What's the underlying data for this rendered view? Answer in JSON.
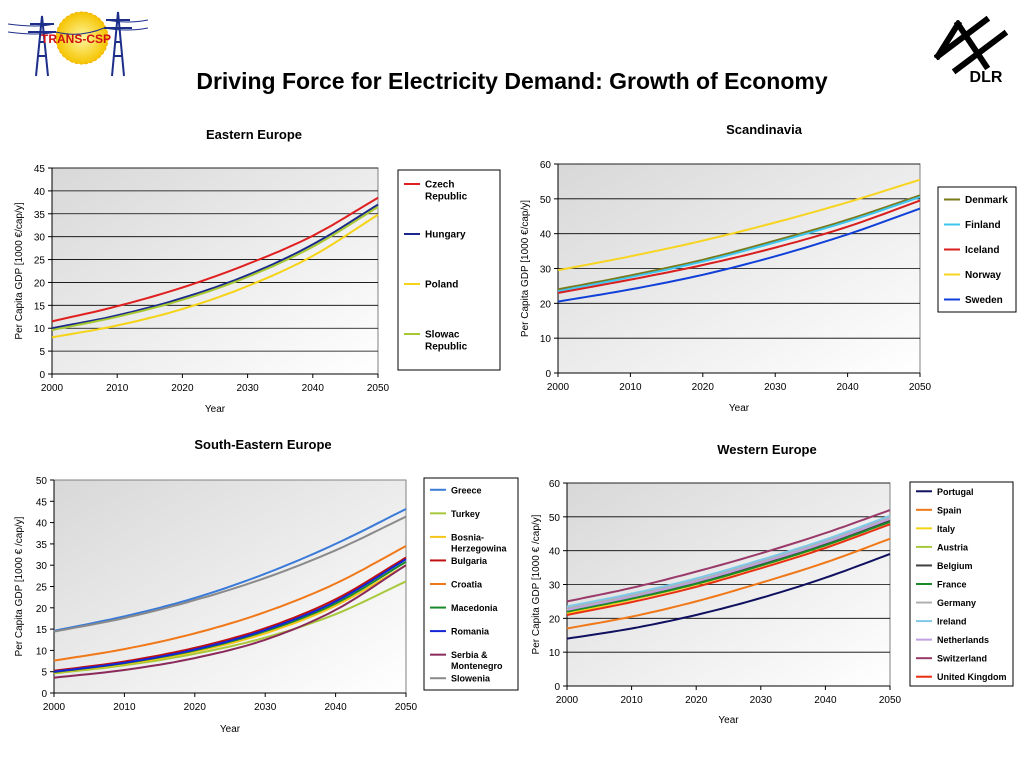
{
  "page": {
    "title": "Driving Force for Electricity Demand: Growth of Economy",
    "logo_left_text": "TRANS-CSP",
    "logo_right_text": "DLR"
  },
  "chart_data": [
    {
      "id": "eastern",
      "type": "line",
      "title": "Eastern Europe",
      "xlabel": "Year",
      "ylabel": "Per Capita GDP [1000 €/cap/y]",
      "xlim": [
        2000,
        2050
      ],
      "ylim": [
        0,
        45
      ],
      "xticks": [
        2000,
        2010,
        2020,
        2030,
        2040,
        2050
      ],
      "yticks": [
        0,
        5,
        10,
        15,
        20,
        25,
        30,
        35,
        40,
        45
      ],
      "grid": "horizontal",
      "legend": "right",
      "series": [
        {
          "name": "Czech Republic",
          "color": "#e02020",
          "values": [
            [
              2000,
              11.5
            ],
            [
              2010,
              14.8
            ],
            [
              2020,
              18.9
            ],
            [
              2030,
              24.0
            ],
            [
              2040,
              30.2
            ],
            [
              2050,
              38.5
            ]
          ]
        },
        {
          "name": "Hungary",
          "color": "#1a2a8c",
          "values": [
            [
              2000,
              10.0
            ],
            [
              2010,
              12.8
            ],
            [
              2020,
              16.6
            ],
            [
              2030,
              21.6
            ],
            [
              2040,
              28.3
            ],
            [
              2050,
              37.0
            ]
          ]
        },
        {
          "name": "Poland",
          "color": "#f5d316",
          "values": [
            [
              2000,
              8.0
            ],
            [
              2010,
              10.6
            ],
            [
              2020,
              14.2
            ],
            [
              2030,
              19.2
            ],
            [
              2040,
              25.8
            ],
            [
              2050,
              34.8
            ]
          ]
        },
        {
          "name": "Slowac Republic",
          "color": "#a8c832",
          "values": [
            [
              2000,
              9.6
            ],
            [
              2010,
              12.5
            ],
            [
              2020,
              16.2
            ],
            [
              2030,
              21.2
            ],
            [
              2040,
              27.8
            ],
            [
              2050,
              36.5
            ]
          ]
        }
      ]
    },
    {
      "id": "scandinavia",
      "type": "line",
      "title": "Scandinavia",
      "xlabel": "Year",
      "ylabel": "Per Capita GDP [1000 €/cap/y]",
      "xlim": [
        2000,
        2050
      ],
      "ylim": [
        0,
        60
      ],
      "xticks": [
        2000,
        2010,
        2020,
        2030,
        2040,
        2050
      ],
      "yticks": [
        0,
        10,
        20,
        30,
        40,
        50,
        60
      ],
      "grid": "horizontal",
      "legend": "right",
      "series": [
        {
          "name": "Denmark",
          "color": "#7a7a1a",
          "values": [
            [
              2000,
              24.0
            ],
            [
              2010,
              28.0
            ],
            [
              2020,
              32.5
            ],
            [
              2030,
              38.0
            ],
            [
              2040,
              44.0
            ],
            [
              2050,
              51.0
            ]
          ]
        },
        {
          "name": "Finland",
          "color": "#3ec6f0",
          "values": [
            [
              2000,
              23.5
            ],
            [
              2010,
              27.5
            ],
            [
              2020,
              32.0
            ],
            [
              2030,
              37.5
            ],
            [
              2040,
              43.5
            ],
            [
              2050,
              50.5
            ]
          ]
        },
        {
          "name": "Iceland",
          "color": "#d81e1e",
          "values": [
            [
              2000,
              23.0
            ],
            [
              2010,
              26.8
            ],
            [
              2020,
              31.0
            ],
            [
              2030,
              36.0
            ],
            [
              2040,
              42.0
            ],
            [
              2050,
              49.5
            ]
          ]
        },
        {
          "name": "Norway",
          "color": "#f7d420",
          "values": [
            [
              2000,
              29.5
            ],
            [
              2010,
              33.5
            ],
            [
              2020,
              38.0
            ],
            [
              2030,
              43.2
            ],
            [
              2040,
              49.0
            ],
            [
              2050,
              55.5
            ]
          ]
        },
        {
          "name": "Sweden",
          "color": "#1040d8",
          "values": [
            [
              2000,
              20.5
            ],
            [
              2010,
              24.0
            ],
            [
              2020,
              28.2
            ],
            [
              2030,
              33.5
            ],
            [
              2040,
              39.8
            ],
            [
              2050,
              47.2
            ]
          ]
        }
      ]
    },
    {
      "id": "southeastern",
      "type": "line",
      "title": "South-Eastern Europe",
      "xlabel": "Year",
      "ylabel": "Per Capita GDP [1000 € /cap/y]",
      "xlim": [
        2000,
        2050
      ],
      "ylim": [
        0,
        50
      ],
      "xticks": [
        2000,
        2010,
        2020,
        2030,
        2040,
        2050
      ],
      "yticks": [
        0,
        5,
        10,
        15,
        20,
        25,
        30,
        35,
        40,
        45,
        50
      ],
      "grid": "none",
      "legend": "right",
      "series": [
        {
          "name": "Greece",
          "color": "#3a7ad8",
          "values": [
            [
              2000,
              14.6
            ],
            [
              2010,
              18.0
            ],
            [
              2020,
              22.3
            ],
            [
              2030,
              28.0
            ],
            [
              2040,
              35.0
            ],
            [
              2050,
              43.2
            ]
          ]
        },
        {
          "name": "Turkey",
          "color": "#a6c83a",
          "values": [
            [
              2000,
              4.6
            ],
            [
              2010,
              6.5
            ],
            [
              2020,
              9.2
            ],
            [
              2030,
              13.0
            ],
            [
              2040,
              18.5
            ],
            [
              2050,
              26.2
            ]
          ]
        },
        {
          "name": "Bosnia-Herzegowina",
          "color": "#f5c518",
          "values": [
            [
              2000,
              4.8
            ],
            [
              2010,
              6.8
            ],
            [
              2020,
              9.7
            ],
            [
              2030,
              14.0
            ],
            [
              2040,
              20.5
            ],
            [
              2050,
              30.0
            ]
          ]
        },
        {
          "name": "Bulgaria",
          "color": "#c01010",
          "values": [
            [
              2000,
              5.2
            ],
            [
              2010,
              7.4
            ],
            [
              2020,
              10.6
            ],
            [
              2030,
              15.2
            ],
            [
              2040,
              22.0
            ],
            [
              2050,
              31.8
            ]
          ]
        },
        {
          "name": "Croatia",
          "color": "#f07818",
          "values": [
            [
              2000,
              7.6
            ],
            [
              2010,
              10.3
            ],
            [
              2020,
              14.0
            ],
            [
              2030,
              19.0
            ],
            [
              2040,
              25.7
            ],
            [
              2050,
              34.5
            ]
          ]
        },
        {
          "name": "Macedonia",
          "color": "#1a8a2a",
          "values": [
            [
              2000,
              4.9
            ],
            [
              2010,
              7.0
            ],
            [
              2020,
              10.0
            ],
            [
              2030,
              14.5
            ],
            [
              2040,
              21.0
            ],
            [
              2050,
              30.8
            ]
          ]
        },
        {
          "name": "Romania",
          "color": "#1424d8",
          "values": [
            [
              2000,
              5.0
            ],
            [
              2010,
              7.1
            ],
            [
              2020,
              10.2
            ],
            [
              2030,
              14.8
            ],
            [
              2040,
              21.5
            ],
            [
              2050,
              31.4
            ]
          ]
        },
        {
          "name": "Serbia & Montenegro",
          "color": "#8a2a5a",
          "values": [
            [
              2000,
              3.6
            ],
            [
              2010,
              5.4
            ],
            [
              2020,
              8.2
            ],
            [
              2030,
              12.5
            ],
            [
              2040,
              19.5
            ],
            [
              2050,
              30.0
            ]
          ]
        },
        {
          "name": "Slowenia",
          "color": "#8a8a8a",
          "values": [
            [
              2000,
              14.4
            ],
            [
              2010,
              17.6
            ],
            [
              2020,
              21.8
            ],
            [
              2030,
              27.0
            ],
            [
              2040,
              33.5
            ],
            [
              2050,
              41.4
            ]
          ]
        }
      ]
    },
    {
      "id": "western",
      "type": "line",
      "title": "Western Europe",
      "xlabel": "Year",
      "ylabel": "Per Capita GDP [1000 € /cap/y]",
      "xlim": [
        2000,
        2050
      ],
      "ylim": [
        0,
        60
      ],
      "xticks": [
        2000,
        2010,
        2020,
        2030,
        2040,
        2050
      ],
      "yticks": [
        0,
        10,
        20,
        30,
        40,
        50,
        60
      ],
      "grid": "horizontal",
      "legend": "right",
      "series": [
        {
          "name": "Portugal",
          "color": "#101060",
          "values": [
            [
              2000,
              14.0
            ],
            [
              2010,
              17.0
            ],
            [
              2020,
              21.0
            ],
            [
              2030,
              26.0
            ],
            [
              2040,
              32.0
            ],
            [
              2050,
              39.0
            ]
          ]
        },
        {
          "name": "Spain",
          "color": "#f07818",
          "values": [
            [
              2000,
              17.0
            ],
            [
              2010,
              20.5
            ],
            [
              2020,
              25.0
            ],
            [
              2030,
              30.5
            ],
            [
              2040,
              36.5
            ],
            [
              2050,
              43.5
            ]
          ]
        },
        {
          "name": "Italy",
          "color": "#f5d316",
          "values": [
            [
              2000,
              21.5
            ],
            [
              2010,
              25.5
            ],
            [
              2020,
              30.0
            ],
            [
              2030,
              35.5
            ],
            [
              2040,
              41.5
            ],
            [
              2050,
              48.5
            ]
          ]
        },
        {
          "name": "Austria",
          "color": "#a6c83a",
          "values": [
            [
              2000,
              22.5
            ],
            [
              2010,
              26.5
            ],
            [
              2020,
              31.0
            ],
            [
              2030,
              36.5
            ],
            [
              2040,
              42.5
            ],
            [
              2050,
              49.5
            ]
          ]
        },
        {
          "name": "Belgium",
          "color": "#404040",
          "values": [
            [
              2000,
              22.0
            ],
            [
              2010,
              26.0
            ],
            [
              2020,
              30.5
            ],
            [
              2030,
              36.0
            ],
            [
              2040,
              42.0
            ],
            [
              2050,
              49.0
            ]
          ]
        },
        {
          "name": "France",
          "color": "#1a8a2a",
          "values": [
            [
              2000,
              22.0
            ],
            [
              2010,
              25.8
            ],
            [
              2020,
              30.2
            ],
            [
              2030,
              35.6
            ],
            [
              2040,
              41.6
            ],
            [
              2050,
              48.5
            ]
          ]
        },
        {
          "name": "Germany",
          "color": "#b0b0b0",
          "values": [
            [
              2000,
              23.0
            ],
            [
              2010,
              27.0
            ],
            [
              2020,
              31.5
            ],
            [
              2030,
              37.0
            ],
            [
              2040,
              43.0
            ],
            [
              2050,
              50.0
            ]
          ]
        },
        {
          "name": "Ireland",
          "color": "#80c8e8",
          "values": [
            [
              2000,
              23.5
            ],
            [
              2010,
              27.3
            ],
            [
              2020,
              31.8
            ],
            [
              2030,
              37.3
            ],
            [
              2040,
              43.3
            ],
            [
              2050,
              50.3
            ]
          ]
        },
        {
          "name": "Netherlands",
          "color": "#c0a0e0",
          "values": [
            [
              2000,
              22.5
            ],
            [
              2010,
              26.4
            ],
            [
              2020,
              30.9
            ],
            [
              2030,
              36.4
            ],
            [
              2040,
              42.4
            ],
            [
              2050,
              49.4
            ]
          ]
        },
        {
          "name": "Switzerland",
          "color": "#9a3a6a",
          "values": [
            [
              2000,
              25.0
            ],
            [
              2010,
              29.0
            ],
            [
              2020,
              33.8
            ],
            [
              2030,
              39.2
            ],
            [
              2040,
              45.2
            ],
            [
              2050,
              52.0
            ]
          ]
        },
        {
          "name": "United Kingdom",
          "color": "#e83010",
          "values": [
            [
              2000,
              21.0
            ],
            [
              2010,
              24.8
            ],
            [
              2020,
              29.3
            ],
            [
              2030,
              34.8
            ],
            [
              2040,
              40.8
            ],
            [
              2050,
              47.8
            ]
          ]
        }
      ]
    }
  ]
}
